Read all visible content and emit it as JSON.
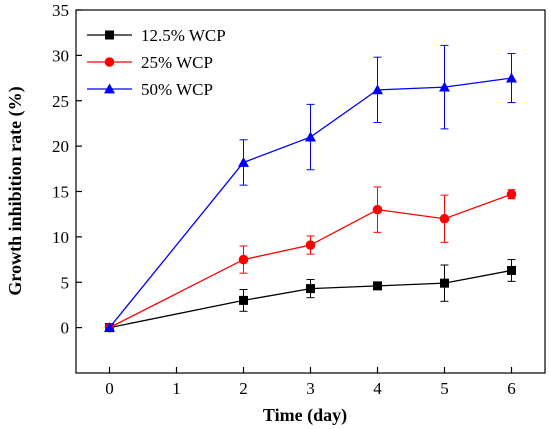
{
  "chart_data": {
    "type": "line",
    "title": "",
    "xlabel": "Time (day)",
    "ylabel": "Growth inhibition rate (%)",
    "xlim": [
      -0.5,
      6.5
    ],
    "ylim": [
      -5,
      35
    ],
    "xticks": [
      0,
      1,
      2,
      3,
      4,
      5,
      6
    ],
    "yticks": [
      0,
      5,
      10,
      15,
      20,
      25,
      30,
      35
    ],
    "grid": false,
    "legend_position": "top-left",
    "series": [
      {
        "name": "12.5% WCP",
        "color": "#000000",
        "marker": "square",
        "x": [
          0,
          2,
          3,
          4,
          5,
          6
        ],
        "values": [
          0,
          3.0,
          4.3,
          4.6,
          4.9,
          6.3
        ],
        "error": [
          0,
          1.2,
          1.0,
          0,
          2.0,
          1.2
        ],
        "error_at_x": [
          2,
          3,
          5,
          6
        ]
      },
      {
        "name": "25% WCP",
        "color": "#ff0000",
        "marker": "circle",
        "x": [
          0,
          2,
          3,
          4,
          5,
          6
        ],
        "values": [
          0,
          7.5,
          9.1,
          13.0,
          12.0,
          14.7
        ],
        "error": [
          0,
          1.5,
          1.0,
          2.5,
          2.6,
          0.5
        ],
        "error_at_x": [
          2,
          3,
          4,
          5,
          6
        ]
      },
      {
        "name": "50% WCP",
        "color": "#0000ff",
        "marker": "triangle",
        "x": [
          0,
          2,
          3,
          4,
          5,
          6
        ],
        "values": [
          0,
          18.2,
          21.0,
          26.2,
          26.5,
          27.5
        ],
        "error": [
          0,
          2.5,
          3.6,
          3.6,
          4.6,
          2.7
        ],
        "error_at_x": [
          2,
          3,
          4,
          5,
          6
        ]
      }
    ]
  }
}
